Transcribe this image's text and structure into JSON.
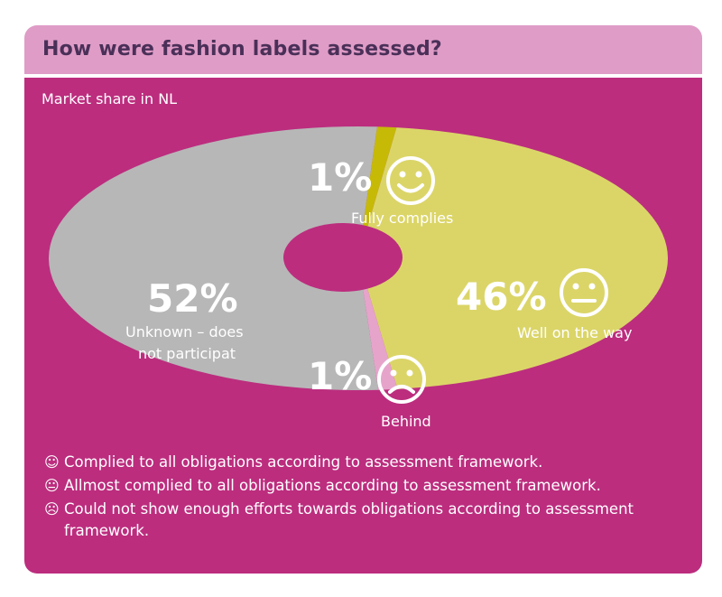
{
  "title": "How were fashion labels assessed?",
  "subtitle": "Market share in NL",
  "colors": {
    "header": "#df9cc7",
    "panel": "#bc2d7e",
    "title_text": "#4a3058"
  },
  "chart_data": {
    "type": "pie",
    "title": "How were fashion labels assessed?",
    "subtitle": "Market share in NL",
    "unit": "%",
    "slices": [
      {
        "label": "Fully complies",
        "value": 1,
        "display": "1%",
        "icon": "smiley-happy-icon",
        "color": "#c6ba07"
      },
      {
        "label": "Well on the way",
        "value": 46,
        "display": "46%",
        "icon": "smiley-neutral-icon",
        "color": "#dbd568"
      },
      {
        "label": "Behind",
        "value": 1,
        "display": "1%",
        "icon": "smiley-sad-icon",
        "color": "#e6a4cb"
      },
      {
        "label": "Unknown – does not participat",
        "label_lines": [
          "Unknown – does",
          "not participat"
        ],
        "value": 52,
        "display": "52%",
        "icon": "",
        "color": "#b7b7b7"
      }
    ],
    "legend": [
      {
        "icon": "smiley-happy-icon",
        "glyph": "☺",
        "text": "Complied to all obligations according to assessment framework."
      },
      {
        "icon": "smiley-neutral-icon",
        "glyph": "😐",
        "text": "Allmost complied to all obligations according to assessment framework."
      },
      {
        "icon": "smiley-sad-icon",
        "glyph": "☹",
        "text": "Could not show enough efforts towards obligations according to assessment framework."
      }
    ]
  }
}
